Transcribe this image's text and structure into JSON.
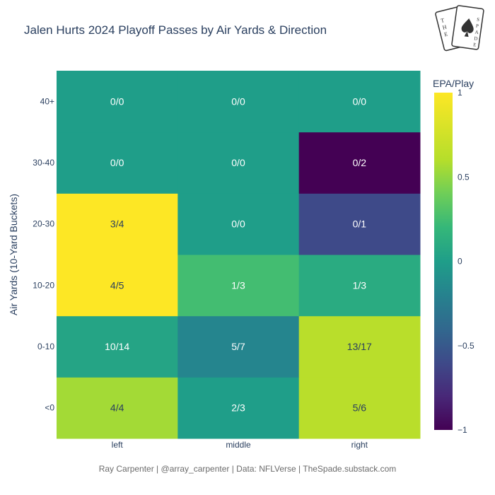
{
  "title": "Jalen Hurts 2024 Playoff Passes by Air Yards & Direction",
  "caption": "Ray Carpenter | @array_carpenter | Data: NFLVerse | TheSpade.substack.com",
  "logo": {
    "text": "THE SPADE"
  },
  "chart_data": {
    "type": "heatmap",
    "title": "Jalen Hurts 2024 Playoff Passes by Air Yards & Direction",
    "xlabel": "",
    "ylabel": "Air Yards (10-Yard Buckets)",
    "x": [
      "left",
      "middle",
      "right"
    ],
    "y": [
      "<0",
      "0-10",
      "10-20",
      "20-30",
      "30-40",
      "40+"
    ],
    "z": [
      [
        0.55,
        0.0,
        0.62
      ],
      [
        0.05,
        -0.18,
        0.62
      ],
      [
        1.0,
        0.25,
        0.1
      ],
      [
        1.0,
        0.0,
        -0.6
      ],
      [
        0.0,
        0.0,
        -1.0
      ],
      [
        0.0,
        0.0,
        0.0
      ]
    ],
    "text": [
      [
        "4/4",
        "2/3",
        "5/6"
      ],
      [
        "10/14",
        "5/7",
        "13/17"
      ],
      [
        "4/5",
        "1/3",
        "1/3"
      ],
      [
        "3/4",
        "0/0",
        "0/1"
      ],
      [
        "0/0",
        "0/0",
        "0/2"
      ],
      [
        "0/0",
        "0/0",
        "0/0"
      ]
    ],
    "colorscale": "Viridis",
    "zlim": [
      -1,
      1
    ],
    "colorbar": {
      "title": "EPA/Play",
      "ticks": [
        "1",
        "0.5",
        "0",
        "−0.5",
        "−1"
      ]
    }
  }
}
